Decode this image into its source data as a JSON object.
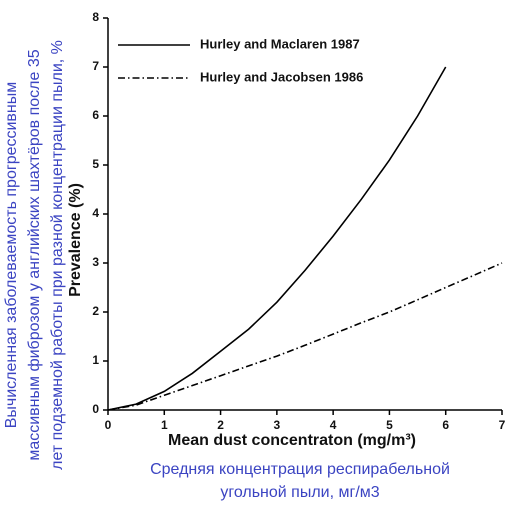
{
  "chart_data": {
    "type": "line",
    "xlabel": "Mean dust concentraton (mg/m³)",
    "ylabel": "Prevalence (%)",
    "y_translation_lines": [
      "Вычисленная заболеваемость прогрессивным",
      "массивным фиброзом у английских шахтёров после 35",
      "лет подземной работы при разной концентрации пыли, %"
    ],
    "x_translation_lines": [
      "Средняя концентрация респирабельной",
      "угольной пыли, мг/м3"
    ],
    "x": [
      0,
      0.5,
      1,
      1.5,
      2,
      2.5,
      3,
      3.5,
      4,
      4.5,
      5,
      5.5,
      6,
      6.5,
      7
    ],
    "series": [
      {
        "name": "Hurley and Maclaren 1987",
        "color": "#000000",
        "dash": "solid",
        "values": [
          0,
          0.12,
          0.38,
          0.75,
          1.2,
          1.65,
          2.2,
          2.85,
          3.55,
          4.3,
          5.1,
          6.0,
          7.0,
          null,
          null
        ]
      },
      {
        "name": "Hurley and Jacobsen 1986",
        "color": "#000000",
        "dash": "dashdot",
        "values": [
          0,
          0.1,
          0.3,
          0.5,
          0.7,
          0.9,
          1.1,
          1.32,
          1.55,
          1.78,
          2.0,
          2.25,
          2.5,
          2.75,
          3.0
        ]
      }
    ],
    "xlim": [
      0,
      7
    ],
    "xticks": [
      0,
      1,
      2,
      3,
      4,
      5,
      6,
      7
    ],
    "ylim": [
      0,
      8
    ],
    "yticks": [
      0,
      1,
      2,
      3,
      4,
      5,
      6,
      7,
      8
    ],
    "legend": "upper-left",
    "grid": false
  }
}
